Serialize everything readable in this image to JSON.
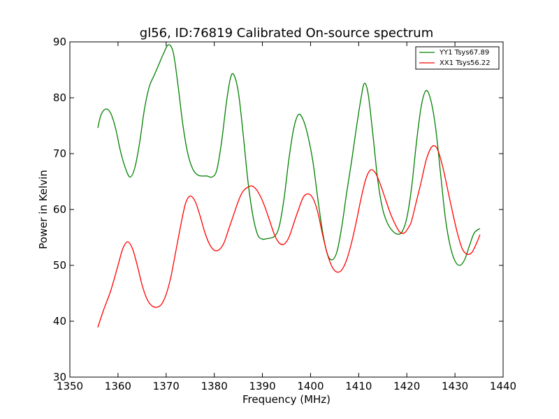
{
  "chart_data": {
    "type": "line",
    "title": "gl56, ID:76819 Calibrated On-source spectrum",
    "xlabel": "Frequency (MHz)",
    "ylabel": "Power in Kelvin",
    "xlim": [
      1350,
      1440
    ],
    "ylim": [
      30,
      90
    ],
    "xticks": [
      "1350",
      "1360",
      "1370",
      "1380",
      "1390",
      "1400",
      "1410",
      "1420",
      "1430",
      "1440"
    ],
    "yticks": [
      "30",
      "40",
      "50",
      "60",
      "70",
      "80",
      "90"
    ],
    "grid": false,
    "legend_position": "top-right",
    "series": [
      {
        "name": "YY1 Tsys67.89",
        "color": "#008000",
        "points": [
          [
            1355.8,
            74.6
          ],
          [
            1356.5,
            77.0
          ],
          [
            1357.5,
            78.0
          ],
          [
            1358.5,
            77.2
          ],
          [
            1359.5,
            74.5
          ],
          [
            1360.5,
            70.5
          ],
          [
            1361.5,
            67.5
          ],
          [
            1362.5,
            65.8
          ],
          [
            1363.5,
            67.5
          ],
          [
            1364.5,
            72.0
          ],
          [
            1365.5,
            78.0
          ],
          [
            1366.5,
            82.0
          ],
          [
            1367.5,
            84.0
          ],
          [
            1368.5,
            86.0
          ],
          [
            1369.5,
            88.0
          ],
          [
            1370.5,
            89.5
          ],
          [
            1371.5,
            88.0
          ],
          [
            1372.5,
            82.0
          ],
          [
            1373.5,
            75.0
          ],
          [
            1374.5,
            70.0
          ],
          [
            1375.5,
            67.3
          ],
          [
            1376.5,
            66.2
          ],
          [
            1377.5,
            66.0
          ],
          [
            1378.5,
            66.0
          ],
          [
            1379.5,
            65.8
          ],
          [
            1380.5,
            67.0
          ],
          [
            1381.5,
            72.0
          ],
          [
            1382.5,
            79.0
          ],
          [
            1383.3,
            83.3
          ],
          [
            1384.0,
            84.2
          ],
          [
            1385.0,
            81.0
          ],
          [
            1386.0,
            73.5
          ],
          [
            1387.0,
            65.0
          ],
          [
            1388.0,
            59.0
          ],
          [
            1389.0,
            55.5
          ],
          [
            1390.0,
            54.7
          ],
          [
            1391.0,
            54.8
          ],
          [
            1392.5,
            55.2
          ],
          [
            1393.5,
            57.0
          ],
          [
            1394.5,
            62.0
          ],
          [
            1395.5,
            69.0
          ],
          [
            1396.5,
            74.5
          ],
          [
            1397.5,
            77.0
          ],
          [
            1398.5,
            76.0
          ],
          [
            1399.5,
            73.0
          ],
          [
            1400.5,
            68.5
          ],
          [
            1401.5,
            62.0
          ],
          [
            1402.5,
            56.0
          ],
          [
            1403.5,
            52.0
          ],
          [
            1404.5,
            51.0
          ],
          [
            1405.5,
            52.5
          ],
          [
            1406.5,
            57.0
          ],
          [
            1407.5,
            63.0
          ],
          [
            1408.5,
            68.5
          ],
          [
            1409.5,
            74.5
          ],
          [
            1410.5,
            80.0
          ],
          [
            1411.2,
            82.6
          ],
          [
            1412.0,
            80.5
          ],
          [
            1413.0,
            73.0
          ],
          [
            1414.0,
            65.0
          ],
          [
            1415.0,
            60.0
          ],
          [
            1416.0,
            57.5
          ],
          [
            1417.0,
            56.2
          ],
          [
            1418.0,
            55.6
          ],
          [
            1419.0,
            56.0
          ],
          [
            1420.0,
            58.5
          ],
          [
            1421.0,
            64.0
          ],
          [
            1422.0,
            72.0
          ],
          [
            1423.0,
            78.5
          ],
          [
            1424.0,
            81.3
          ],
          [
            1425.0,
            79.5
          ],
          [
            1426.0,
            74.5
          ],
          [
            1427.0,
            66.5
          ],
          [
            1428.0,
            58.5
          ],
          [
            1429.0,
            53.5
          ],
          [
            1430.0,
            50.8
          ],
          [
            1431.0,
            50.0
          ],
          [
            1432.0,
            51.0
          ],
          [
            1433.0,
            53.5
          ],
          [
            1434.0,
            55.8
          ],
          [
            1435.2,
            56.6
          ]
        ]
      },
      {
        "name": "XX1 Tsys56.22",
        "color": "#ff0000",
        "points": [
          [
            1355.8,
            38.9
          ],
          [
            1357.0,
            42.0
          ],
          [
            1358.5,
            45.5
          ],
          [
            1360.0,
            50.0
          ],
          [
            1361.0,
            53.0
          ],
          [
            1362.0,
            54.2
          ],
          [
            1363.0,
            53.0
          ],
          [
            1364.0,
            50.0
          ],
          [
            1365.0,
            46.5
          ],
          [
            1366.0,
            44.0
          ],
          [
            1367.0,
            42.8
          ],
          [
            1368.0,
            42.5
          ],
          [
            1369.0,
            43.0
          ],
          [
            1370.0,
            44.8
          ],
          [
            1371.0,
            48.0
          ],
          [
            1372.0,
            52.5
          ],
          [
            1373.0,
            57.0
          ],
          [
            1374.0,
            61.0
          ],
          [
            1375.0,
            62.4
          ],
          [
            1376.0,
            61.5
          ],
          [
            1377.0,
            59.0
          ],
          [
            1378.0,
            56.0
          ],
          [
            1379.0,
            53.8
          ],
          [
            1380.0,
            52.7
          ],
          [
            1381.0,
            52.8
          ],
          [
            1382.0,
            54.0
          ],
          [
            1383.0,
            56.5
          ],
          [
            1384.0,
            59.0
          ],
          [
            1385.0,
            61.5
          ],
          [
            1386.0,
            63.3
          ],
          [
            1387.5,
            64.2
          ],
          [
            1388.5,
            63.8
          ],
          [
            1389.5,
            62.5
          ],
          [
            1390.5,
            60.5
          ],
          [
            1391.5,
            58.0
          ],
          [
            1392.5,
            55.5
          ],
          [
            1393.5,
            54.0
          ],
          [
            1394.5,
            53.8
          ],
          [
            1395.5,
            55.0
          ],
          [
            1396.5,
            57.5
          ],
          [
            1397.5,
            60.0
          ],
          [
            1398.5,
            62.2
          ],
          [
            1399.5,
            62.8
          ],
          [
            1400.5,
            62.0
          ],
          [
            1401.5,
            59.5
          ],
          [
            1402.5,
            55.5
          ],
          [
            1403.5,
            52.0
          ],
          [
            1404.5,
            49.7
          ],
          [
            1405.5,
            48.8
          ],
          [
            1406.5,
            49.2
          ],
          [
            1407.5,
            51.0
          ],
          [
            1408.5,
            54.0
          ],
          [
            1409.5,
            57.8
          ],
          [
            1410.5,
            62.0
          ],
          [
            1411.5,
            65.5
          ],
          [
            1412.5,
            67.1
          ],
          [
            1413.5,
            66.5
          ],
          [
            1414.5,
            64.5
          ],
          [
            1415.5,
            62.0
          ],
          [
            1416.5,
            59.5
          ],
          [
            1417.5,
            57.5
          ],
          [
            1418.5,
            56.0
          ],
          [
            1419.5,
            55.8
          ],
          [
            1420.5,
            57.0
          ],
          [
            1421.0,
            58.0
          ],
          [
            1422.0,
            61.5
          ],
          [
            1423.0,
            65.0
          ],
          [
            1424.0,
            68.8
          ],
          [
            1425.0,
            71.0
          ],
          [
            1425.8,
            71.4
          ],
          [
            1426.5,
            70.5
          ],
          [
            1427.5,
            67.5
          ],
          [
            1428.5,
            63.5
          ],
          [
            1429.5,
            59.5
          ],
          [
            1430.5,
            55.8
          ],
          [
            1431.5,
            53.0
          ],
          [
            1432.5,
            52.0
          ],
          [
            1433.5,
            52.3
          ],
          [
            1434.5,
            54.0
          ],
          [
            1435.2,
            55.5
          ]
        ]
      }
    ]
  }
}
